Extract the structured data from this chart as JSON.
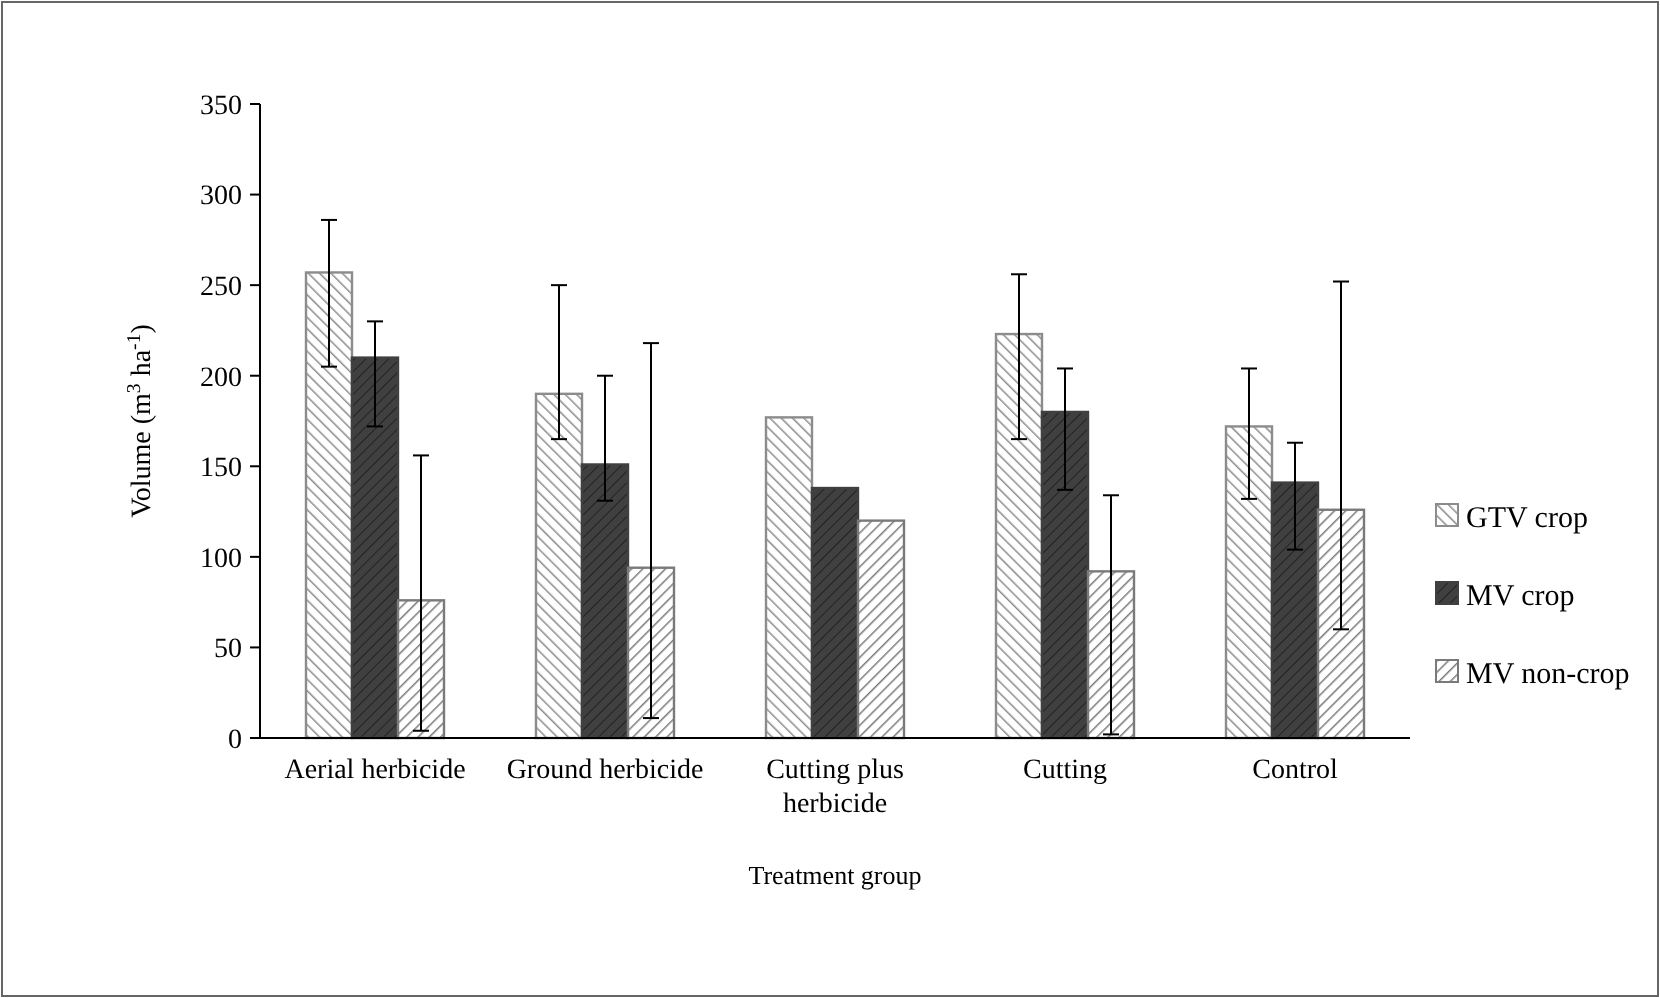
{
  "chart_data": {
    "type": "bar",
    "xlabel": "Treatment group",
    "ylabel": "Volume (m$^{3}$ ha$^{-1}$)",
    "categories": [
      "Aerial herbicide",
      "Ground herbicide",
      "Cutting plus herbicide",
      "Cutting",
      "Control"
    ],
    "series": [
      {
        "name": "GTV crop",
        "color": "#8c8c8c",
        "values": [
          257,
          190,
          177,
          223,
          172
        ],
        "errors": [
          [
            205,
            286
          ],
          [
            165,
            250
          ],
          null,
          [
            165,
            256
          ],
          [
            132,
            204
          ]
        ]
      },
      {
        "name": "MV crop",
        "color": "#404040",
        "values": [
          210,
          151,
          138,
          180,
          141
        ],
        "errors": [
          [
            172,
            230
          ],
          [
            131,
            200
          ],
          null,
          [
            137,
            204
          ],
          [
            104,
            163
          ]
        ]
      },
      {
        "name": "MV non-crop",
        "color": "#7a7a7a",
        "values": [
          76,
          94,
          120,
          92,
          126
        ],
        "errors": [
          [
            4,
            156
          ],
          [
            11,
            218
          ],
          null,
          [
            2,
            134
          ],
          [
            60,
            252
          ]
        ]
      }
    ],
    "ylim": [
      0,
      350
    ],
    "yticks": [
      0,
      50,
      100,
      150,
      200,
      250,
      300,
      350
    ],
    "grid": false,
    "legend": "right"
  }
}
